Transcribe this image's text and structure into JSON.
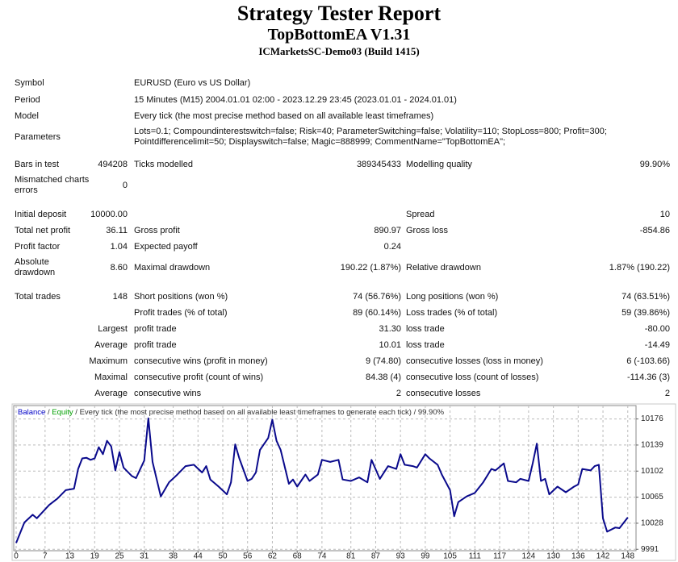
{
  "header": {
    "title": "Strategy Tester Report",
    "subtitle": "TopBottomEA V1.31",
    "server": "ICMarketsSC-Demo03 (Build 1415)"
  },
  "report": {
    "rows": [
      [
        "Symbol",
        "EURUSD (Euro vs US Dollar)"
      ],
      [
        "Period",
        "15 Minutes (M15) 2004.01.01 02:00 - 2023.12.29 23:45 (2023.01.01 - 2024.01.01)"
      ],
      [
        "Model",
        "Every tick (the most precise method based on all available least timeframes)"
      ],
      [
        "Parameters",
        [
          "Lots=0.1; Compoundinterestswitch=false; Risk=40; ParameterSwitching=false; Volatility=110; StopLoss=800; Profit=300;",
          "Pointdifferencelimit=50; Displayswitch=false; Magic=888999; CommentName=\"TopBottomEA\";"
        ]
      ],
      [
        "Bars in test",
        "494208",
        "Ticks modelled",
        "389345433",
        "Modelling quality",
        "99.90%"
      ],
      [
        [
          "Mismatched charts",
          "errors"
        ],
        "0",
        null,
        null,
        null,
        null
      ],
      [
        "Initial deposit",
        "10000.00",
        null,
        null,
        "Spread",
        "10"
      ],
      [
        "Total net profit",
        "36.11",
        "Gross profit",
        "890.97",
        "Gross loss",
        "-854.86"
      ],
      [
        "Profit factor",
        "1.04",
        "Expected payoff",
        "0.24",
        null,
        null
      ],
      [
        [
          "Absolute",
          "drawdown"
        ],
        "8.60",
        "Maximal drawdown",
        "190.22 (1.87%)",
        "Relative drawdown",
        "1.87% (190.22)"
      ],
      [
        "Total trades",
        "148",
        "Short positions (won %)",
        "74 (56.76%)",
        "Long positions (won %)",
        "74 (63.51%)"
      ],
      [
        null,
        null,
        "Profit trades (% of total)",
        "89 (60.14%)",
        "Loss trades (% of total)",
        "59 (39.86%)"
      ],
      [
        null,
        "Largest",
        "profit trade",
        "31.30",
        "loss trade",
        "-80.00"
      ],
      [
        null,
        "Average",
        "profit trade",
        "10.01",
        "loss trade",
        "-14.49"
      ],
      [
        null,
        "Maximum",
        "consecutive wins (profit in money)",
        "9 (74.80)",
        "consecutive losses (loss in money)",
        "6 (-103.66)"
      ],
      [
        null,
        "Maximal",
        "consecutive profit (count of wins)",
        "84.38 (4)",
        "consecutive loss (count of losses)",
        "-114.36 (3)"
      ],
      [
        null,
        "Average",
        "consecutive wins",
        "2",
        "consecutive losses",
        "2"
      ]
    ]
  },
  "chart_data": {
    "type": "line",
    "legend": [
      "Balance",
      " / ",
      "Equity",
      " / Every tick (the most precise method based on all available least timeframes to generate each tick) / 99.90%"
    ],
    "legend_colors": [
      "#0000c8",
      "#333333",
      "#00a000",
      "#333333"
    ],
    "x": [
      0,
      2,
      4,
      5,
      8,
      10,
      12,
      14,
      15,
      16,
      17,
      18,
      19,
      20,
      21,
      22,
      23,
      24,
      25,
      26,
      28,
      29,
      31,
      32,
      33,
      35,
      37,
      39,
      41,
      43,
      45,
      46,
      47,
      49,
      51,
      52,
      53,
      54,
      56,
      57,
      58,
      59,
      61,
      62,
      63,
      64,
      66,
      67,
      68,
      70,
      71,
      73,
      74,
      76,
      78,
      79,
      81,
      83,
      85,
      86,
      88,
      90,
      92,
      93,
      94,
      96,
      97,
      99,
      100,
      102,
      103,
      105,
      106,
      107,
      109,
      111,
      113,
      115,
      116,
      118,
      119,
      121,
      122,
      124,
      125,
      126,
      127,
      128,
      129,
      131,
      133,
      135,
      136,
      137,
      139,
      140,
      141,
      142,
      143,
      145,
      146,
      148
    ],
    "series": [
      {
        "name": "Balance",
        "color": "#0a0a8c",
        "values": [
          10000,
          10029,
          10040,
          10035,
          10054,
          10063,
          10075,
          10077,
          10105,
          10120,
          10121,
          10118,
          10120,
          10136,
          10126,
          10145,
          10137,
          10103,
          10129,
          10107,
          10095,
          10092,
          10117,
          10177,
          10115,
          10066,
          10086,
          10097,
          10109,
          10111,
          10100,
          10109,
          10090,
          10080,
          10069,
          10086,
          10140,
          10120,
          10088,
          10091,
          10100,
          10132,
          10149,
          10175,
          10145,
          10132,
          10084,
          10090,
          10080,
          10097,
          10088,
          10097,
          10118,
          10115,
          10118,
          10090,
          10088,
          10093,
          10086,
          10118,
          10091,
          10109,
          10105,
          10126,
          10111,
          10109,
          10107,
          10126,
          10120,
          10111,
          10097,
          10075,
          10038,
          10058,
          10066,
          10071,
          10086,
          10105,
          10103,
          10113,
          10088,
          10086,
          10091,
          10088,
          10113,
          10141,
          10088,
          10091,
          10069,
          10080,
          10072,
          10080,
          10083,
          10105,
          10103,
          10109,
          10111,
          10035,
          10016,
          10022,
          10021,
          10036.11
        ]
      }
    ],
    "xlim": [
      0,
      150
    ],
    "xticks": [
      0,
      7,
      13,
      19,
      25,
      31,
      38,
      44,
      50,
      56,
      62,
      68,
      74,
      81,
      87,
      93,
      99,
      105,
      111,
      117,
      124,
      130,
      136,
      142,
      148
    ],
    "ylim": [
      9989,
      10195
    ],
    "yticks": [
      9991,
      10028,
      10065,
      10102,
      10139,
      10176
    ],
    "grid": true
  }
}
